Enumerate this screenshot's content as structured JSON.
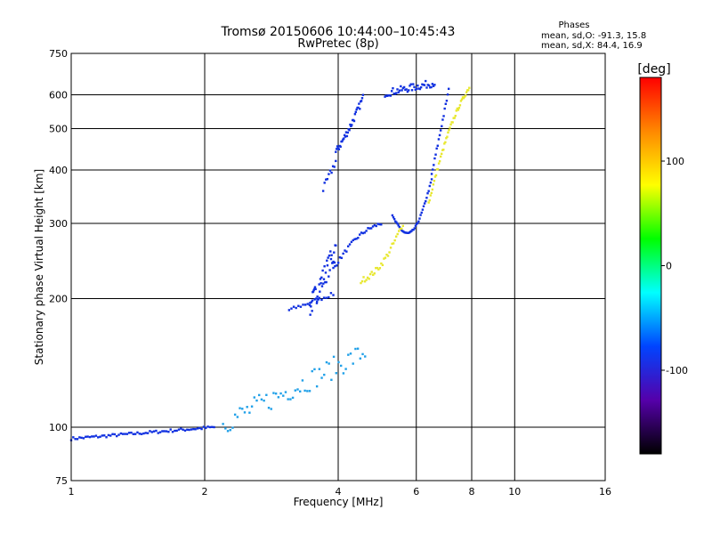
{
  "chart_data": {
    "type": "scatter",
    "title": "Tromsø 20150606 10:44:00–10:45:43",
    "subtitle": "RwPretec (8p)",
    "xlabel": "Frequency [MHz]",
    "ylabel": "Stationary phase Virtual Height [km]",
    "x_scale": "log",
    "y_scale": "log",
    "xlim": [
      1,
      16
    ],
    "ylim": [
      75,
      750
    ],
    "x_ticks": [
      1,
      2,
      4,
      6,
      8,
      10,
      16
    ],
    "y_ticks": [
      75,
      100,
      200,
      300,
      400,
      500,
      600,
      750
    ],
    "grid": true,
    "phase_box": {
      "title": "Phases",
      "line_o": "mean, sd,O: -91.3, 15.8",
      "line_x": "mean, sd,X:  84.4, 16.9"
    },
    "colorbar": {
      "label": "[deg]",
      "range": [
        -180,
        180
      ],
      "ticks": [
        100,
        0,
        -100
      ],
      "colors": [
        "#ff0000",
        "#ff8800",
        "#ffff00",
        "#00ff00",
        "#00ffff",
        "#0044ff",
        "#5500aa",
        "#000000"
      ]
    },
    "series": [
      {
        "phase": -95,
        "color": "#1030e0",
        "traces": [
          {
            "f0": 1.0,
            "f1": 2.1,
            "h0": 94,
            "h1": 100,
            "n": 70,
            "bow": 0,
            "jitter": 0.008
          },
          {
            "f0": 3.1,
            "f1": 3.9,
            "h0": 188,
            "h1": 205,
            "n": 20,
            "bow": 0,
            "jitter": 0.01
          },
          {
            "f0": 3.45,
            "f1": 3.95,
            "h0": 190,
            "h1": 260,
            "n": 45,
            "bow": 0,
            "jitter": 0.06
          },
          {
            "f0": 3.9,
            "f1": 5.0,
            "h0": 235,
            "h1": 300,
            "n": 30,
            "bow": 0.3,
            "jitter": 0.01
          },
          {
            "f0": 3.7,
            "f1": 3.95,
            "h0": 360,
            "h1": 420,
            "n": 10,
            "bow": 0,
            "jitter": 0.02
          },
          {
            "f0": 3.95,
            "f1": 4.55,
            "h0": 440,
            "h1": 590,
            "n": 35,
            "bow": -0.1,
            "jitter": 0.02
          },
          {
            "f0": 5.1,
            "f1": 6.6,
            "h0": 605,
            "h1": 640,
            "n": 45,
            "bow": 0,
            "jitter": 0.02
          },
          {
            "f0": 5.3,
            "f1": 6.5,
            "h0": 312,
            "h1": 380,
            "n": 40,
            "bow": -1.2,
            "jitter": 0.005
          },
          {
            "f0": 6.5,
            "f1": 7.1,
            "h0": 390,
            "h1": 615,
            "n": 18,
            "bow": 0,
            "jitter": 0.01
          }
        ]
      },
      {
        "phase": 90,
        "color": "#e8e830",
        "traces": [
          {
            "f0": 4.5,
            "f1": 5.6,
            "h0": 220,
            "h1": 300,
            "n": 32,
            "bow": -0.4,
            "jitter": 0.015
          },
          {
            "f0": 6.4,
            "f1": 7.9,
            "h0": 335,
            "h1": 625,
            "n": 45,
            "bow": 0.5,
            "jitter": 0.01
          }
        ]
      },
      {
        "phase": -60,
        "color": "#20a0e8",
        "traces": [
          {
            "f0": 2.2,
            "f1": 4.6,
            "h0": 102,
            "h1": 150,
            "n": 60,
            "bow": 0,
            "jitter": 0.06
          }
        ]
      }
    ]
  }
}
